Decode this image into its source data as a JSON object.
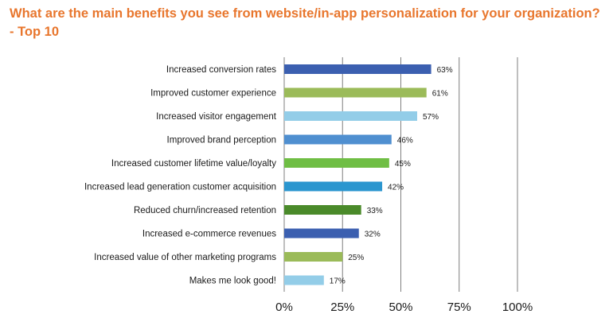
{
  "chart_data": {
    "type": "bar",
    "orientation": "horizontal",
    "title": "What are the main benefits you see from website/in-app personalization for your organization? - Top 10",
    "categories": [
      "Increased conversion rates",
      "Improved customer experience",
      "Increased visitor engagement",
      "Improved brand perception",
      "Increased customer lifetime value/loyalty",
      "Increased lead generation customer acquisition",
      "Reduced churn/increased retention",
      "Increased e-commerce revenues",
      "Increased value of other marketing programs",
      "Makes me look good!"
    ],
    "values": [
      63,
      61,
      57,
      46,
      45,
      42,
      33,
      32,
      25,
      17
    ],
    "value_labels": [
      "63%",
      "61%",
      "57%",
      "46%",
      "45%",
      "42%",
      "33%",
      "32%",
      "25%",
      "17%"
    ],
    "bar_colors": [
      "#3b5fb0",
      "#9bbb59",
      "#93cde8",
      "#4f8fd0",
      "#6fbe44",
      "#2b96cf",
      "#4a8a2a",
      "#3b5fb0",
      "#9bbb59",
      "#93cde8"
    ],
    "xlim": [
      0,
      100
    ],
    "x_ticks": [
      "0%",
      "25%",
      "50%",
      "75%",
      "100%"
    ],
    "grid": "vertical",
    "xlabel": "",
    "ylabel": ""
  },
  "colors": {
    "title": "#e8762d",
    "grid": "#7f7f7f",
    "text": "#1a1a1a"
  }
}
